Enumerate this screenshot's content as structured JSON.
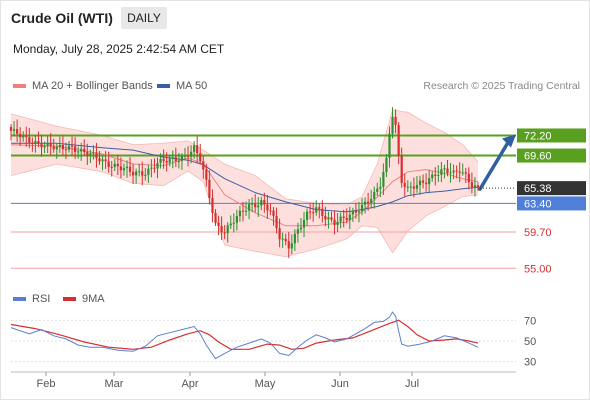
{
  "header": {
    "title": "Crude Oil (WTI)",
    "period": "DAILY",
    "datetime": "Monday, July 28, 2025 2:42:54 AM CET"
  },
  "legend": {
    "ma_bb_label": "MA 20 + Bollinger Bands",
    "ma50_label": "MA 50",
    "credit": "Research © 2025 Trading Central"
  },
  "rsi_legend": {
    "rsi_label": "RSI",
    "ma9_label": "9MA"
  },
  "colors": {
    "bullish": "#2f8f2f",
    "bearish": "#d62f2f",
    "bb_fill": "#fde0de",
    "ma50": "#3b5ea8",
    "ma20": "#f08080",
    "resistance": "#5aa020",
    "support": "#4f7fd8",
    "rsi": "#5b7fd0",
    "rsi_ma": "#d62f2f"
  },
  "chart_data": [
    {
      "type": "candlestick",
      "title": "Crude Oil (WTI)",
      "x_tick_labels": [
        "Feb",
        "Mar",
        "Apr",
        "May",
        "Jun",
        "Jul"
      ],
      "ylim": [
        54,
        75.5
      ],
      "current_price": 65.38,
      "levels": [
        {
          "value": 72.2,
          "label": "72.20",
          "kind": "resistance"
        },
        {
          "value": 69.6,
          "label": "69.60",
          "kind": "resistance"
        },
        {
          "value": 65.38,
          "label": "65.38",
          "kind": "current"
        },
        {
          "value": 63.4,
          "label": "63.40",
          "kind": "pivot"
        },
        {
          "value": 59.7,
          "label": "59.70",
          "kind": "support"
        },
        {
          "value": 55.0,
          "label": "55.00",
          "kind": "support"
        }
      ],
      "close_path": [
        [
          0,
          72.8
        ],
        [
          5,
          71.6
        ],
        [
          10,
          71.2
        ],
        [
          15,
          70.4
        ],
        [
          20,
          70.8
        ],
        [
          25,
          69.8
        ],
        [
          30,
          68.9
        ],
        [
          35,
          68.2
        ],
        [
          40,
          67.2
        ],
        [
          44,
          67.5
        ],
        [
          48,
          68.6
        ],
        [
          52,
          68.9
        ],
        [
          57,
          69.6
        ],
        [
          60,
          70.5
        ],
        [
          62,
          69.0
        ],
        [
          64,
          66.0
        ],
        [
          67,
          60.8
        ],
        [
          70,
          59.8
        ],
        [
          74,
          61.5
        ],
        [
          78,
          63.2
        ],
        [
          82,
          63.6
        ],
        [
          85,
          62.3
        ],
        [
          88,
          59.0
        ],
        [
          91,
          58.0
        ],
        [
          94,
          60.0
        ],
        [
          97,
          61.8
        ],
        [
          100,
          62.7
        ],
        [
          103,
          61.8
        ],
        [
          106,
          61.0
        ],
        [
          110,
          61.4
        ],
        [
          113,
          62.4
        ],
        [
          116,
          63.6
        ],
        [
          119,
          64.5
        ],
        [
          121,
          65.7
        ],
        [
          123,
          68.8
        ],
        [
          124,
          72.5
        ],
        [
          125,
          75.0
        ],
        [
          126,
          73.5
        ],
        [
          127,
          69.5
        ],
        [
          128,
          66.5
        ],
        [
          130,
          65.3
        ],
        [
          133,
          65.6
        ],
        [
          136,
          66.2
        ],
        [
          139,
          67.4
        ],
        [
          142,
          67.8
        ],
        [
          145,
          67.1
        ],
        [
          147,
          67.6
        ],
        [
          149,
          67.0
        ],
        [
          151,
          66.0
        ],
        [
          153,
          65.38
        ]
      ],
      "bollinger": {
        "upper": [
          [
            0,
            75.0
          ],
          [
            15,
            73.4
          ],
          [
            30,
            72.2
          ],
          [
            40,
            71.0
          ],
          [
            50,
            71.2
          ],
          [
            58,
            71.5
          ],
          [
            63,
            70.3
          ],
          [
            70,
            68.5
          ],
          [
            80,
            67.0
          ],
          [
            90,
            64.0
          ],
          [
            100,
            63.4
          ],
          [
            110,
            63.2
          ],
          [
            115,
            64.3
          ],
          [
            120,
            68.5
          ],
          [
            125,
            75.5
          ],
          [
            130,
            75.2
          ],
          [
            136,
            73.8
          ],
          [
            142,
            72.6
          ],
          [
            148,
            71.0
          ],
          [
            153,
            68.8
          ]
        ],
        "lower": [
          [
            0,
            67.0
          ],
          [
            15,
            68.5
          ],
          [
            30,
            67.5
          ],
          [
            40,
            66.0
          ],
          [
            50,
            65.7
          ],
          [
            58,
            67.6
          ],
          [
            63,
            66.2
          ],
          [
            70,
            58.0
          ],
          [
            80,
            57.2
          ],
          [
            90,
            56.5
          ],
          [
            100,
            57.5
          ],
          [
            110,
            58.8
          ],
          [
            115,
            60.5
          ],
          [
            120,
            60.3
          ],
          [
            125,
            57.0
          ],
          [
            130,
            59.8
          ],
          [
            136,
            61.8
          ],
          [
            142,
            63.0
          ],
          [
            148,
            64.3
          ],
          [
            153,
            64.5
          ]
        ]
      },
      "ma20": [
        [
          0,
          71.0
        ],
        [
          15,
          70.8
        ],
        [
          30,
          69.8
        ],
        [
          40,
          68.5
        ],
        [
          50,
          68.3
        ],
        [
          58,
          69.3
        ],
        [
          63,
          68.5
        ],
        [
          70,
          64.5
        ],
        [
          80,
          62.2
        ],
        [
          90,
          60.5
        ],
        [
          100,
          60.5
        ],
        [
          110,
          61.0
        ],
        [
          115,
          62.3
        ],
        [
          120,
          64.2
        ],
        [
          125,
          66.2
        ],
        [
          130,
          67.5
        ],
        [
          136,
          67.8
        ],
        [
          142,
          67.3
        ],
        [
          148,
          66.6
        ],
        [
          153,
          66.2
        ]
      ],
      "ma50": [
        [
          0,
          71.2
        ],
        [
          15,
          71.2
        ],
        [
          30,
          70.6
        ],
        [
          40,
          70.3
        ],
        [
          50,
          69.4
        ],
        [
          58,
          69.0
        ],
        [
          63,
          68.4
        ],
        [
          70,
          66.6
        ],
        [
          80,
          64.8
        ],
        [
          90,
          63.6
        ],
        [
          100,
          62.6
        ],
        [
          110,
          62.3
        ],
        [
          115,
          62.6
        ],
        [
          120,
          63.0
        ],
        [
          125,
          63.6
        ],
        [
          130,
          64.4
        ],
        [
          136,
          64.8
        ],
        [
          142,
          65.0
        ],
        [
          148,
          65.3
        ],
        [
          153,
          65.5
        ]
      ]
    },
    {
      "type": "line",
      "title": "RSI",
      "ylim": [
        20,
        80
      ],
      "y_tick_labels": [
        "70",
        "50",
        "30"
      ],
      "y_ticks": [
        70,
        50,
        30
      ],
      "series": [
        {
          "name": "RSI",
          "values": [
            [
              0,
              63
            ],
            [
              6,
              57
            ],
            [
              10,
              61
            ],
            [
              14,
              55
            ],
            [
              18,
              52
            ],
            [
              22,
              46
            ],
            [
              26,
              44
            ],
            [
              30,
              44
            ],
            [
              35,
              41
            ],
            [
              40,
              40
            ],
            [
              44,
              45
            ],
            [
              48,
              55
            ],
            [
              52,
              58
            ],
            [
              56,
              61
            ],
            [
              60,
              64
            ],
            [
              62,
              57
            ],
            [
              64,
              46
            ],
            [
              67,
              33
            ],
            [
              70,
              38
            ],
            [
              74,
              44
            ],
            [
              78,
              48
            ],
            [
              82,
              52
            ],
            [
              85,
              48
            ],
            [
              88,
              38
            ],
            [
              91,
              36
            ],
            [
              94,
              44
            ],
            [
              97,
              51
            ],
            [
              100,
              56
            ],
            [
              103,
              53
            ],
            [
              106,
              49
            ],
            [
              110,
              52
            ],
            [
              113,
              57
            ],
            [
              116,
              62
            ],
            [
              119,
              68
            ],
            [
              122,
              69
            ],
            [
              124,
              73
            ],
            [
              125,
              78
            ],
            [
              126,
              74
            ],
            [
              127,
              60
            ],
            [
              128,
              47
            ],
            [
              130,
              45
            ],
            [
              134,
              47
            ],
            [
              138,
              50
            ],
            [
              142,
              55
            ],
            [
              146,
              53
            ],
            [
              150,
              48
            ],
            [
              153,
              44
            ]
          ]
        },
        {
          "name": "9MA",
          "values": [
            [
              0,
              66
            ],
            [
              8,
              62
            ],
            [
              16,
              56
            ],
            [
              24,
              49
            ],
            [
              32,
              44
            ],
            [
              40,
              42
            ],
            [
              46,
              44
            ],
            [
              52,
              51
            ],
            [
              58,
              57
            ],
            [
              62,
              60
            ],
            [
              65,
              56
            ],
            [
              68,
              49
            ],
            [
              72,
              42
            ],
            [
              78,
              42
            ],
            [
              84,
              47
            ],
            [
              88,
              46
            ],
            [
              92,
              42
            ],
            [
              96,
              43
            ],
            [
              100,
              48
            ],
            [
              106,
              51
            ],
            [
              112,
              53
            ],
            [
              118,
              60
            ],
            [
              124,
              67
            ],
            [
              127,
              70
            ],
            [
              130,
              64
            ],
            [
              133,
              56
            ],
            [
              137,
              50
            ],
            [
              142,
              51
            ],
            [
              146,
              52
            ],
            [
              150,
              50
            ],
            [
              153,
              48
            ]
          ]
        }
      ]
    }
  ]
}
